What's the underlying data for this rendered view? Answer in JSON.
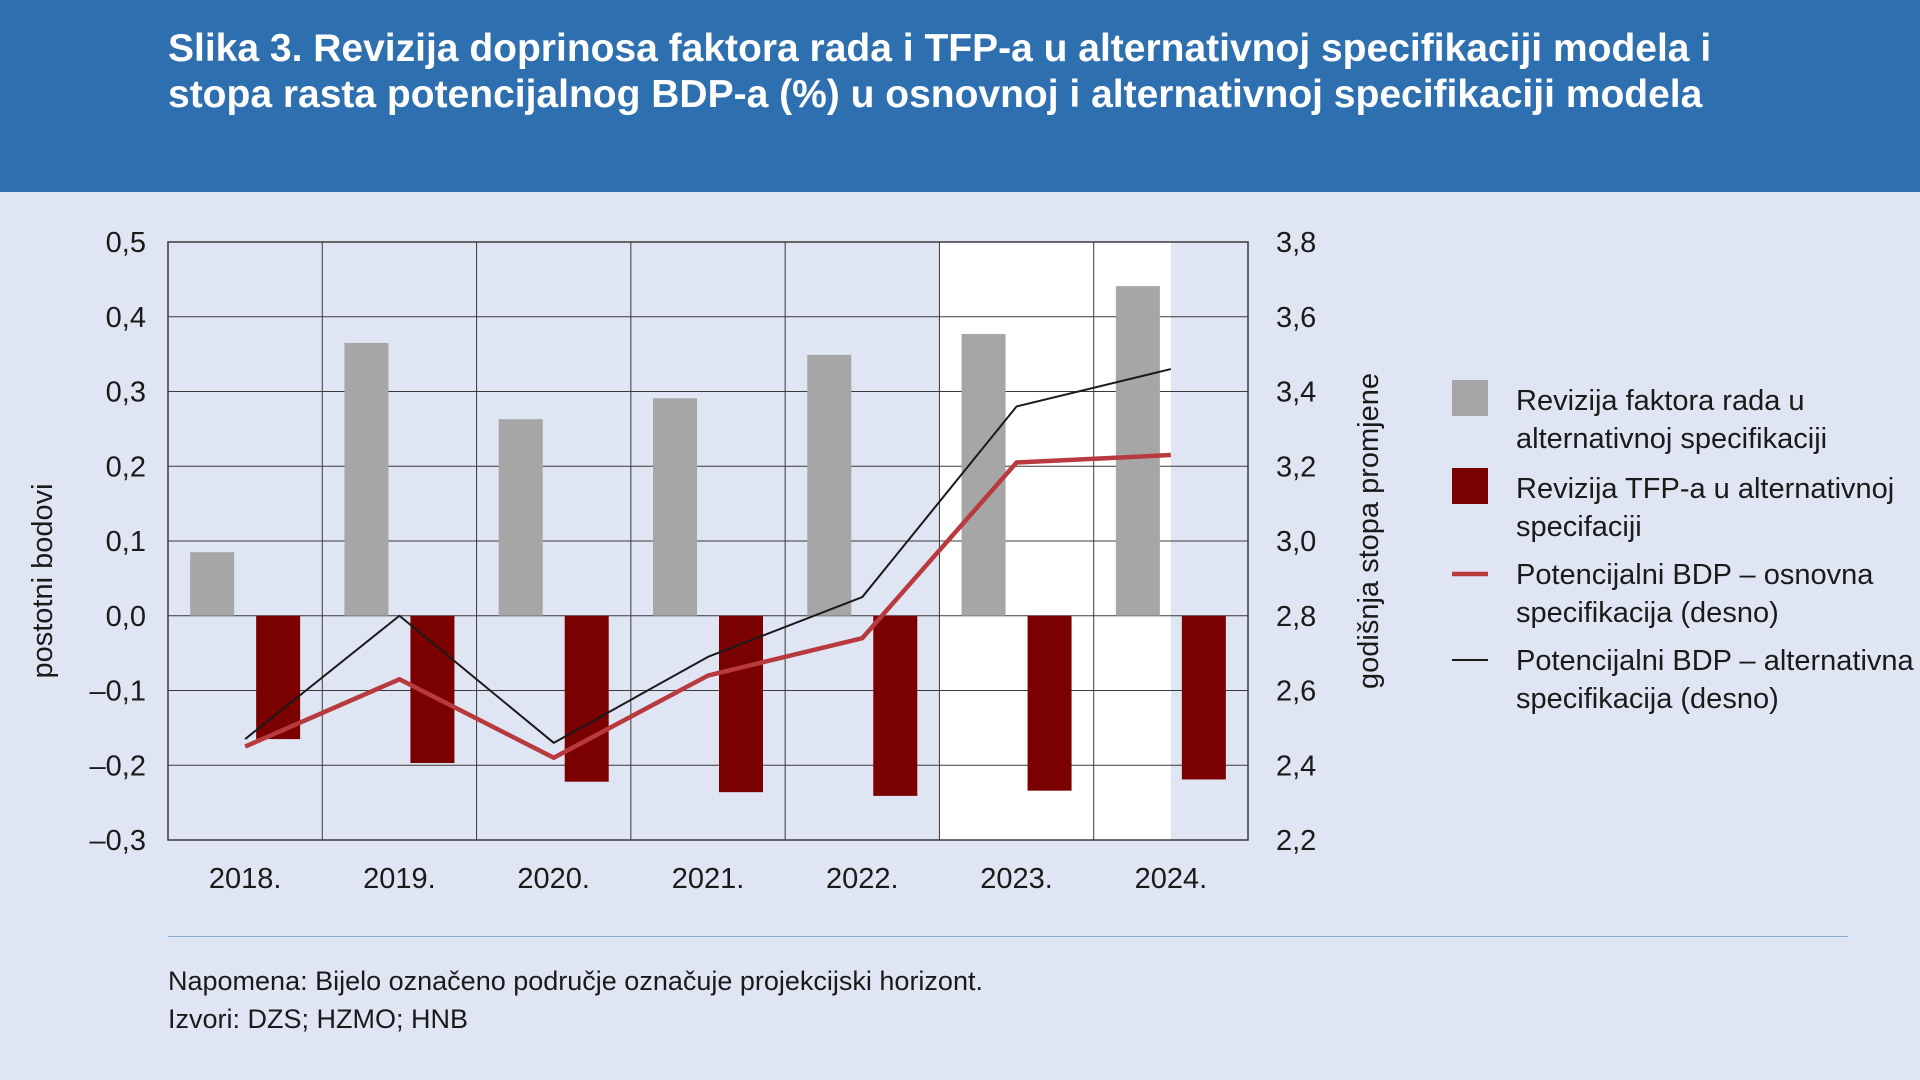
{
  "header": {
    "title": "Slika 3. Revizija doprinosa faktora rada i TFP-a u alternativnoj specifikaciji modela i stopa rasta potencijalnog BDP-a (%) u osnovnoj i alternativnoj specifikaciji modela"
  },
  "footer": {
    "note": "Napomena: Bijelo označeno područje označuje projekcijski horizont.",
    "sources": "Izvori: DZS; HZMO; HNB"
  },
  "colors": {
    "header_bg": "#2e6fb0",
    "background": "#dfe5f2",
    "projection_band": "#ffffff",
    "labor_bar": "#a6a6a6",
    "tfp_bar": "#7b0000",
    "baseline_line": "#b83a3e",
    "alternative_line": "#1a1a1a"
  },
  "chart_data": {
    "type": "bar",
    "categories": [
      "2018.",
      "2019.",
      "2020.",
      "2021.",
      "2022.",
      "2023.",
      "2024."
    ],
    "projection_horizon": [
      "2023.",
      "2024."
    ],
    "y_left": {
      "label": "postotni bodovi",
      "lim": [
        -0.3,
        0.5
      ],
      "ticks": [
        "0,5",
        "0,4",
        "0,3",
        "0,2",
        "0,1",
        "0,0",
        "–0,1",
        "–0,2",
        "–0,3"
      ],
      "tick_values": [
        0.5,
        0.4,
        0.3,
        0.2,
        0.1,
        0.0,
        -0.1,
        -0.2,
        -0.3
      ]
    },
    "y_right": {
      "label": "godišnja stopa promjene",
      "lim": [
        2.2,
        3.8
      ],
      "ticks": [
        "3,8",
        "3,6",
        "3,4",
        "3,2",
        "3,0",
        "2,8",
        "2,6",
        "2,4",
        "2,2"
      ],
      "tick_values": [
        3.8,
        3.6,
        3.4,
        3.2,
        3.0,
        2.8,
        2.6,
        2.4,
        2.2
      ]
    },
    "grid": true,
    "legend_position": "right",
    "series": [
      {
        "name": "Revizija faktora rada u alternativnoj specifikaciji",
        "legend_lines": [
          "Revizija faktora rada u",
          "alternativnoj specifikaciji"
        ],
        "kind": "bar",
        "axis": "left",
        "color": "#a6a6a6",
        "values": [
          0.085,
          0.365,
          0.263,
          0.291,
          0.349,
          0.377,
          0.441
        ]
      },
      {
        "name": "Revizija TFP-a u alternativnoj specifacija",
        "legend_lines": [
          "Revizija TFP-a u alternativnoj",
          "specifaciji"
        ],
        "kind": "bar",
        "axis": "left",
        "color": "#7b0000",
        "values": [
          -0.165,
          -0.197,
          -0.222,
          -0.236,
          -0.241,
          -0.234,
          -0.219
        ]
      },
      {
        "name": "Potencijalni BDP – osnovna specifikacija (desno)",
        "legend_lines": [
          "Potencijalni BDP – osnovna",
          "specifikacija (desno)"
        ],
        "kind": "line",
        "axis": "right",
        "color": "#b83a3e",
        "values": [
          2.45,
          2.63,
          2.42,
          2.64,
          2.74,
          3.21,
          3.23
        ]
      },
      {
        "name": "Potencijalni BDP – alternativna specifikacija (desno)",
        "legend_lines": [
          "Potencijalni BDP – alternativna",
          "specifikacija (desno)"
        ],
        "kind": "line",
        "axis": "right",
        "color": "#1a1a1a",
        "values": [
          2.47,
          2.8,
          2.46,
          2.69,
          2.85,
          3.36,
          3.46
        ]
      }
    ]
  }
}
